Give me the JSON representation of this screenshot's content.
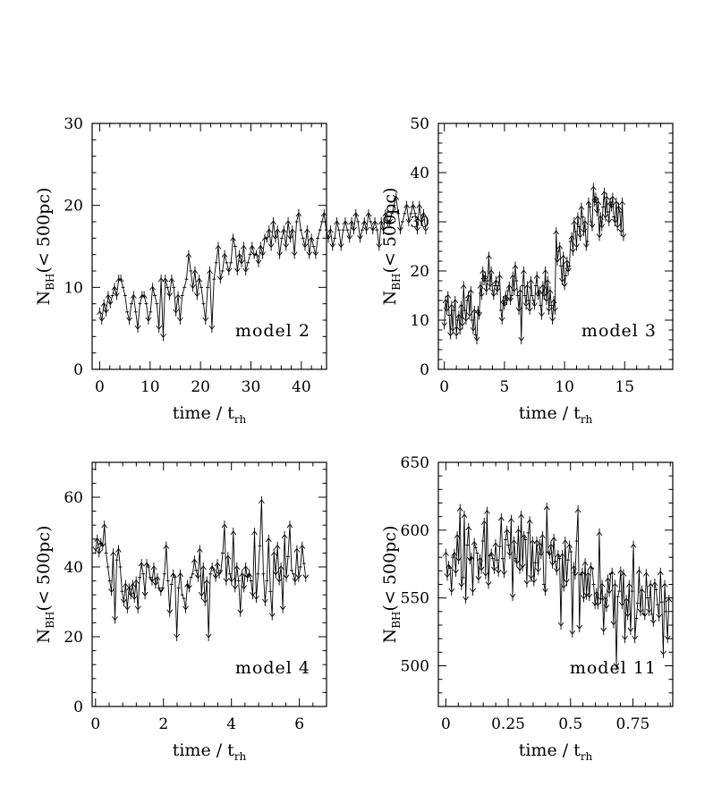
{
  "chart_data": [
    {
      "type": "line",
      "panel": "top-left",
      "label": "model 2",
      "xlabel": "time / t",
      "xlabel_sub": "rh",
      "ylabel_main": "N",
      "ylabel_sub": "BH",
      "ylabel_rest": "(< 500pc)",
      "xlim": [
        -1.5,
        45
      ],
      "ylim": [
        0,
        30
      ],
      "xticks": [
        0,
        10,
        20,
        30,
        40
      ],
      "xtick_labels": [
        "0",
        "10",
        "20",
        "30",
        "40"
      ],
      "yticks": [
        0,
        10,
        20,
        30
      ],
      "ytick_labels": [
        "0",
        "10",
        "20",
        "30"
      ],
      "x_start": 0,
      "x_step": 0.42,
      "values": [
        7,
        6,
        8,
        7,
        9,
        8,
        9,
        10,
        9,
        11,
        11,
        10,
        9,
        7,
        6,
        8,
        9,
        7,
        5,
        8,
        9,
        9,
        8,
        6,
        7,
        10,
        9,
        8,
        5,
        11,
        4,
        11,
        10,
        9,
        11,
        10,
        7,
        9,
        6,
        9,
        10,
        11,
        14,
        12,
        10,
        12,
        9,
        11,
        10,
        8,
        6,
        10,
        12,
        5,
        11,
        13,
        15,
        11,
        12,
        14,
        13,
        12,
        13,
        16,
        15,
        12,
        14,
        13,
        15,
        12,
        13,
        14,
        15,
        14,
        14,
        13,
        15,
        14,
        16,
        16,
        17,
        15,
        18,
        16,
        17,
        14,
        16,
        17,
        15,
        18,
        16,
        17,
        14,
        18,
        19,
        17,
        16,
        15,
        17,
        14,
        16,
        15,
        14,
        16,
        17,
        18,
        19,
        17,
        16,
        17,
        15,
        16,
        18,
        17,
        15,
        17,
        18,
        17,
        16,
        18,
        17,
        19,
        18,
        16,
        17,
        18,
        17,
        19,
        18,
        17,
        18,
        17,
        15,
        18,
        17,
        19,
        18,
        18,
        19,
        20,
        21,
        19,
        17,
        18,
        19,
        20,
        18,
        19,
        20,
        19,
        17,
        20,
        18,
        19,
        17
      ]
    },
    {
      "type": "line",
      "panel": "top-right",
      "label": "model 3",
      "xlabel": "time / t",
      "xlabel_sub": "rh",
      "ylabel_main": "N",
      "ylabel_sub": "BH",
      "ylabel_rest": "(< 500pc)",
      "xlim": [
        -0.5,
        19
      ],
      "ylim": [
        0,
        50
      ],
      "xticks": [
        0,
        5,
        10,
        15
      ],
      "xtick_labels": [
        "0",
        "5",
        "10",
        "15"
      ],
      "yticks": [
        0,
        10,
        20,
        30,
        40,
        50
      ],
      "ytick_labels": [
        "0",
        "10",
        "20",
        "30",
        "40",
        "50"
      ],
      "x_start": 0,
      "x_step": 0.1,
      "values": [
        9,
        14,
        12,
        15,
        11,
        7,
        13,
        8,
        12,
        14,
        7,
        10,
        11,
        8,
        13,
        9,
        17,
        12,
        10,
        14,
        15,
        11,
        16,
        10,
        8,
        12,
        7,
        6,
        12,
        11,
        17,
        15,
        20,
        18,
        19,
        16,
        18,
        23,
        17,
        20,
        16,
        15,
        17,
        18,
        16,
        17,
        19,
        12,
        10,
        14,
        13,
        15,
        14,
        16,
        17,
        14,
        15,
        19,
        16,
        21,
        18,
        15,
        12,
        16,
        6,
        17,
        20,
        15,
        13,
        17,
        14,
        12,
        18,
        15,
        14,
        13,
        17,
        19,
        15,
        16,
        13,
        11,
        17,
        15,
        20,
        14,
        18,
        12,
        16,
        13,
        10,
        14,
        12,
        28,
        22,
        24,
        25,
        21,
        18,
        23,
        17,
        19,
        22,
        20,
        21,
        26,
        27,
        24,
        30,
        28,
        25,
        31,
        29,
        27,
        33,
        31,
        28,
        30,
        25,
        26,
        34,
        33,
        30,
        29,
        37,
        34,
        35,
        32,
        34,
        27,
        31,
        29,
        33,
        36,
        31,
        35,
        32,
        30,
        34,
        33,
        35,
        31,
        30,
        34,
        29,
        33,
        32,
        28,
        34,
        27
      ]
    },
    {
      "type": "line",
      "panel": "bottom-left",
      "label": "model 4",
      "xlabel": "time / t",
      "xlabel_sub": "rh",
      "ylabel_main": "N",
      "ylabel_sub": "BH",
      "ylabel_rest": "(< 500pc)",
      "xlim": [
        -0.1,
        6.8
      ],
      "ylim": [
        0,
        70
      ],
      "xticks": [
        0,
        2,
        4,
        6
      ],
      "xtick_labels": [
        "0",
        "2",
        "4",
        "6"
      ],
      "yticks": [
        0,
        20,
        40,
        60
      ],
      "ytick_labels": [
        "0",
        "20",
        "40",
        "60"
      ],
      "x_start": 0,
      "x_step": 0.052,
      "values": [
        45,
        48,
        44,
        47,
        46,
        52,
        44,
        40,
        36,
        33,
        44,
        25,
        42,
        45,
        40,
        33,
        30,
        35,
        28,
        34,
        32,
        35,
        31,
        36,
        28,
        37,
        41,
        38,
        32,
        41,
        40,
        37,
        36,
        40,
        35,
        37,
        34,
        33,
        34,
        38,
        46,
        36,
        27,
        35,
        38,
        37,
        20,
        34,
        38,
        32,
        31,
        28,
        35,
        34,
        37,
        38,
        42,
        39,
        37,
        45,
        32,
        40,
        30,
        36,
        20,
        38,
        40,
        39,
        37,
        41,
        38,
        39,
        44,
        52,
        36,
        43,
        38,
        36,
        50,
        34,
        40,
        36,
        27,
        38,
        34,
        40,
        37,
        38,
        36,
        32,
        50,
        31,
        38,
        46,
        59,
        38,
        30,
        36,
        48,
        33,
        26,
        44,
        38,
        46,
        36,
        40,
        28,
        49,
        37,
        43,
        52,
        39,
        38,
        36,
        45,
        37,
        40,
        46,
        41,
        37
      ]
    },
    {
      "type": "line",
      "panel": "bottom-right",
      "label": "model 11",
      "xlabel": "time / t",
      "xlabel_sub": "rh",
      "ylabel_main": "N",
      "ylabel_sub": "BH",
      "ylabel_rest": "(< 500pc)",
      "xlim": [
        -0.03,
        0.91
      ],
      "ylim": [
        470,
        650
      ],
      "xticks": [
        0,
        0.25,
        0.5,
        0.75
      ],
      "xtick_labels": [
        "0",
        "0.25",
        "0.5",
        "0.75"
      ],
      "yticks": [
        500,
        550,
        600,
        650
      ],
      "ytick_labels": [
        "500",
        "550",
        "600",
        "650"
      ],
      "x_start": 0,
      "x_step": 0.0057,
      "values": [
        583,
        566,
        574,
        572,
        555,
        580,
        583,
        569,
        596,
        578,
        616,
        559,
        565,
        611,
        549,
        589,
        602,
        578,
        580,
        555,
        591,
        587,
        583,
        564,
        579,
        571,
        592,
        606,
        567,
        614,
        560,
        581,
        583,
        579,
        571,
        590,
        578,
        569,
        588,
        609,
        579,
        568,
        593,
        600,
        589,
        582,
        608,
        551,
        592,
        579,
        576,
        600,
        571,
        611,
        573,
        596,
        593,
        561,
        598,
        607,
        565,
        592,
        562,
        576,
        592,
        570,
        590,
        582,
        596,
        560,
        555,
        617,
        584,
        582,
        589,
        575,
        594,
        577,
        570,
        582,
        579,
        530,
        582,
        558,
        592,
        562,
        578,
        589,
        584,
        524,
        573,
        567,
        592,
        615,
        528,
        567,
        569,
        550,
        576,
        552,
        568,
        551,
        573,
        572,
        560,
        545,
        554,
        545,
        598,
        549,
        560,
        526,
        550,
        543,
        564,
        554,
        568,
        569,
        531,
        560,
        500,
        551,
        555,
        570,
        545,
        568,
        520,
        549,
        537,
        560,
        526,
        555,
        589,
        520,
        535,
        546,
        570,
        540,
        556,
        538,
        537,
        568,
        550,
        540,
        560,
        538,
        532,
        561,
        556,
        545,
        536,
        569,
        547,
        509,
        560,
        540,
        520,
        549
      ]
    }
  ]
}
